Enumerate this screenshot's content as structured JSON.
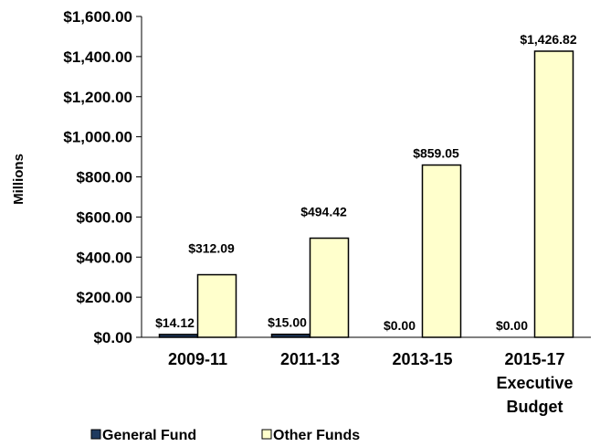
{
  "chart_data": {
    "type": "bar",
    "categories": [
      [
        "2009-11"
      ],
      [
        "2011-13"
      ],
      [
        "2013-15"
      ],
      [
        "2015-17",
        "Executive",
        "Budget"
      ]
    ],
    "series": [
      {
        "name": "General Fund",
        "values": [
          14.12,
          15.0,
          0.0,
          0.0
        ],
        "labels": [
          "$14.12",
          "$15.00",
          "$0.00",
          "$0.00"
        ],
        "color": "#1f3a5f"
      },
      {
        "name": "Other Funds",
        "values": [
          312.09,
          494.42,
          859.05,
          1426.82
        ],
        "labels": [
          "$312.09",
          "$494.42",
          "$859.05",
          "$1,426.82"
        ],
        "color": "#ffffcc"
      }
    ],
    "ylabel": "Millions",
    "ylim": [
      0,
      1600
    ],
    "yticks": [
      0,
      200,
      400,
      600,
      800,
      1000,
      1200,
      1400,
      1600
    ],
    "ytick_labels": [
      "$0.00",
      "$200.00",
      "$400.00",
      "$600.00",
      "$800.00",
      "$1,000.00",
      "$1,200.00",
      "$1,400.00",
      "$1,600.00"
    ],
    "grid": false,
    "legend_position": "bottom"
  }
}
